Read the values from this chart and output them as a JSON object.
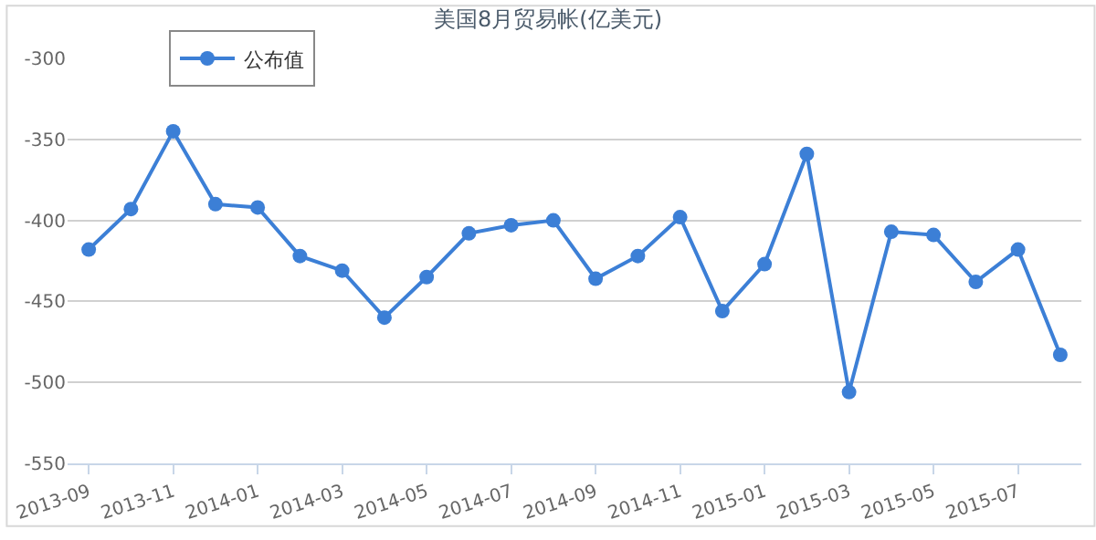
{
  "chart_data": {
    "type": "line",
    "title": "美国8月贸易帐(亿美元)",
    "categories": [
      "2013-09",
      null,
      "2013-11",
      null,
      "2014-01",
      null,
      "2014-03",
      null,
      "2014-05",
      null,
      "2014-07",
      null,
      "2014-09",
      null,
      "2014-11",
      null,
      "2015-01",
      null,
      "2015-03",
      null,
      "2015-05",
      null,
      "2015-07",
      null
    ],
    "series": [
      {
        "name": "公布值",
        "color": "#3c7fd6",
        "values": [
          -418,
          -393,
          -345,
          -390,
          -392,
          -422,
          -431,
          -460,
          -435,
          -408,
          -403,
          -400,
          -436,
          -422,
          -398,
          -456,
          -427,
          -359,
          -506,
          -407,
          -409,
          -438,
          -418,
          -483
        ]
      }
    ],
    "ylim": [
      -550,
      -300
    ],
    "yticks": [
      -300,
      -350,
      -400,
      -450,
      -500,
      -550
    ],
    "grid": "y",
    "legend": "top left",
    "marker": "circle",
    "line_style": "solid"
  }
}
